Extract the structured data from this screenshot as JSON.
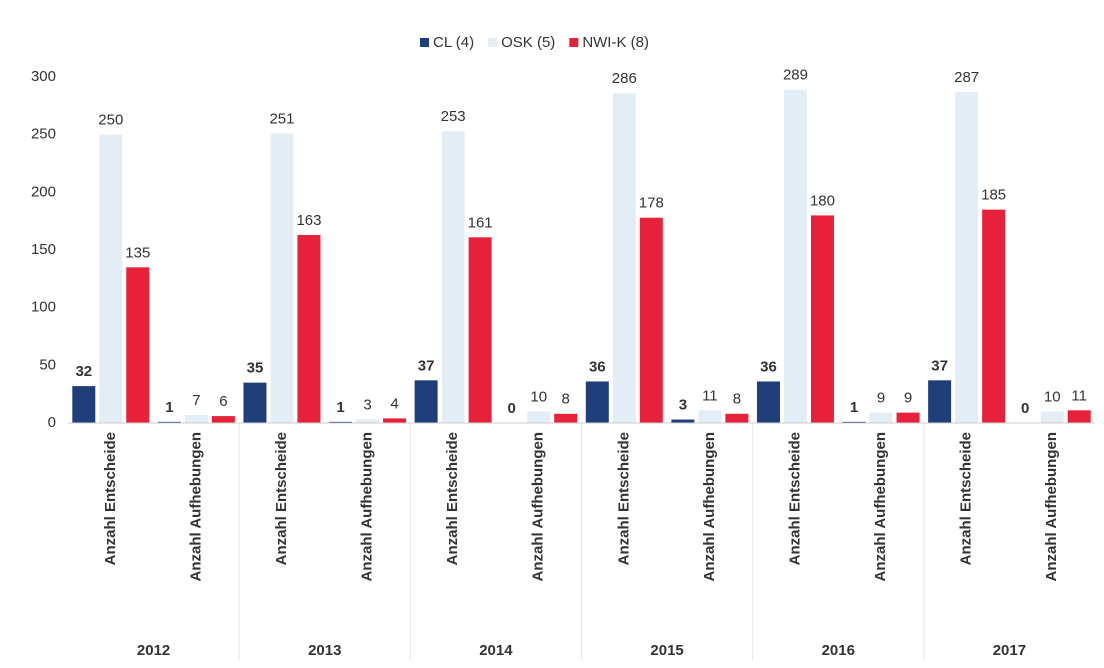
{
  "chart_data": {
    "type": "bar",
    "categories": [
      "Anzahl Entscheide",
      "Anzahl Aufhebungen",
      "Anzahl Entscheide",
      "Anzahl Aufhebungen",
      "Anzahl Entscheide",
      "Anzahl Aufhebungen",
      "Anzahl Entscheide",
      "Anzahl Aufhebungen",
      "Anzahl Entscheide",
      "Anzahl Aufhebungen",
      "Anzahl Entscheide",
      "Anzahl Aufhebungen"
    ],
    "groups": [
      "2012",
      "2013",
      "2014",
      "2015",
      "2016",
      "2017"
    ],
    "series": [
      {
        "name": "CL (4)",
        "color": "#1f3e7a",
        "values": [
          32,
          1,
          35,
          1,
          37,
          0,
          36,
          3,
          36,
          1,
          37,
          0
        ]
      },
      {
        "name": "OSK (5)",
        "color": "#e2edf6",
        "values": [
          250,
          7,
          251,
          3,
          253,
          10,
          286,
          11,
          289,
          9,
          287,
          10
        ]
      },
      {
        "name": "NWI-K (8)",
        "color": "#e8213a",
        "values": [
          135,
          6,
          163,
          4,
          161,
          8,
          178,
          8,
          180,
          9,
          185,
          11
        ]
      }
    ],
    "ylim": [
      0,
      300
    ],
    "yticks": [
      0,
      50,
      100,
      150,
      200,
      250,
      300
    ],
    "grid": false,
    "legend": "top"
  }
}
